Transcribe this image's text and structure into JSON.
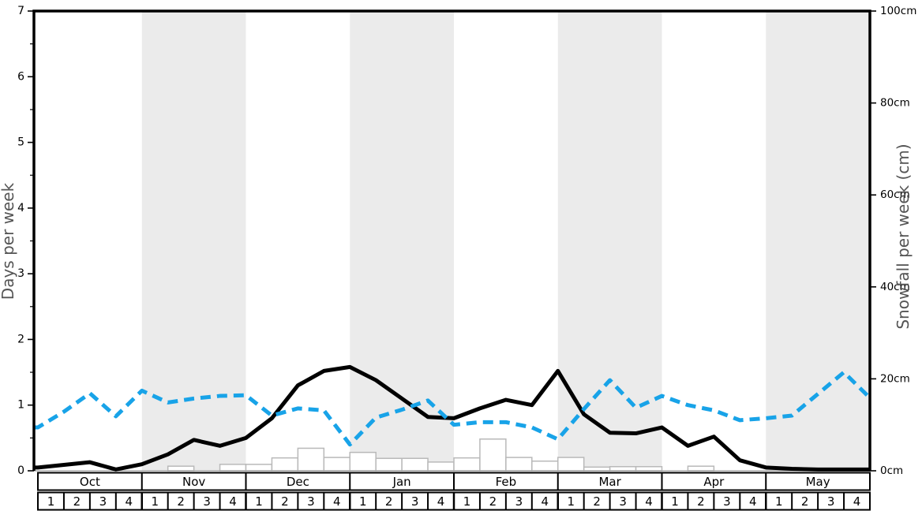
{
  "chart_data": {
    "type": "line",
    "title": "",
    "left_axis": {
      "label": "Days per week",
      "range": [
        0,
        7
      ],
      "tick_labels": [
        "0",
        "1",
        "2",
        "3",
        "4",
        "5",
        "6",
        "7"
      ],
      "tick_values": [
        0,
        1,
        2,
        3,
        4,
        5,
        6,
        7
      ],
      "minor_tick_step": 0.5
    },
    "right_axis": {
      "label": "Snowfall per week (cm)",
      "range": [
        0,
        100
      ],
      "tick_labels": [
        "0cm",
        "20cm",
        "40cm",
        "60cm",
        "80cm",
        "100cm"
      ],
      "tick_values": [
        0,
        20,
        40,
        60,
        80,
        100
      ]
    },
    "x_axis": {
      "months": [
        "Oct",
        "Nov",
        "Dec",
        "Jan",
        "Feb",
        "Mar",
        "Apr",
        "May"
      ],
      "weeks_per_month": [
        "1",
        "2",
        "3",
        "4"
      ],
      "shaded_months": [
        "Nov",
        "Jan",
        "Mar",
        "May"
      ]
    },
    "series": [
      {
        "id": "line_black",
        "name": "days line (black solid)",
        "kind": "line",
        "style": "solid",
        "color": "#000000",
        "axis": "left",
        "values": [
          0.05,
          0.09,
          0.13,
          0.02,
          0.1,
          0.25,
          0.47,
          0.38,
          0.5,
          0.8,
          1.3,
          1.52,
          1.58,
          1.38,
          1.1,
          0.82,
          0.8,
          0.95,
          1.08,
          1.0,
          1.52,
          0.86,
          0.58,
          0.57,
          0.66,
          0.38,
          0.52,
          0.16,
          0.05,
          0.03,
          0.02,
          0.02,
          0.02
        ]
      },
      {
        "id": "line_blue_dashed",
        "name": "days line (blue dashed)",
        "kind": "line",
        "style": "dashed",
        "color": "#18a3e8",
        "axis": "left",
        "values": [
          0.66,
          0.9,
          1.18,
          0.83,
          1.22,
          1.04,
          1.1,
          1.14,
          1.15,
          0.84,
          0.95,
          0.92,
          0.4,
          0.81,
          0.93,
          1.07,
          0.7,
          0.74,
          0.74,
          0.66,
          0.48,
          0.94,
          1.38,
          0.96,
          1.14,
          1.0,
          0.92,
          0.77,
          0.8,
          0.84,
          1.17,
          1.5,
          1.11
        ]
      },
      {
        "id": "bars_snowfall",
        "name": "snowfall per week bars (cm)",
        "kind": "bar",
        "fill": "#ffffff",
        "border": "#b9b9b9",
        "axis": "right",
        "values_cm": [
          0,
          0,
          0,
          0,
          0,
          1.0,
          0,
          1.4,
          1.4,
          2.8,
          4.9,
          2.9,
          4.0,
          2.7,
          2.7,
          1.9,
          2.8,
          6.9,
          2.9,
          2.1,
          2.9,
          0.8,
          0.9,
          0.9,
          0,
          1.0,
          0,
          0,
          0,
          0,
          0,
          0
        ]
      }
    ],
    "colors": {
      "month_band": "#ebebeb",
      "baseline": "#a0a0a0",
      "spine": "#000000",
      "footer_border": "#000000"
    },
    "legend": "none",
    "grid": "off"
  }
}
